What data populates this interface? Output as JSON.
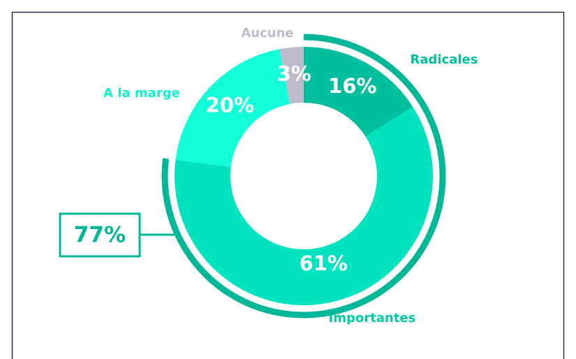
{
  "chart_data": {
    "type": "pie",
    "categories": [
      "Radicales",
      "Importantes",
      "A la marge",
      "Aucune"
    ],
    "values": [
      16,
      61,
      20,
      3
    ],
    "value_labels": [
      "16%",
      "61%",
      "20%",
      "3%"
    ],
    "colors": [
      "#00bf9f",
      "#00e3c0",
      "#12ffd9",
      "#bcbccd"
    ],
    "label_colors": [
      "#00bf9f",
      "#00c9a7",
      "#12f0cf",
      "#bcbccd"
    ],
    "annotation": {
      "value": 77,
      "label": "77%",
      "color": "#00b898"
    }
  }
}
